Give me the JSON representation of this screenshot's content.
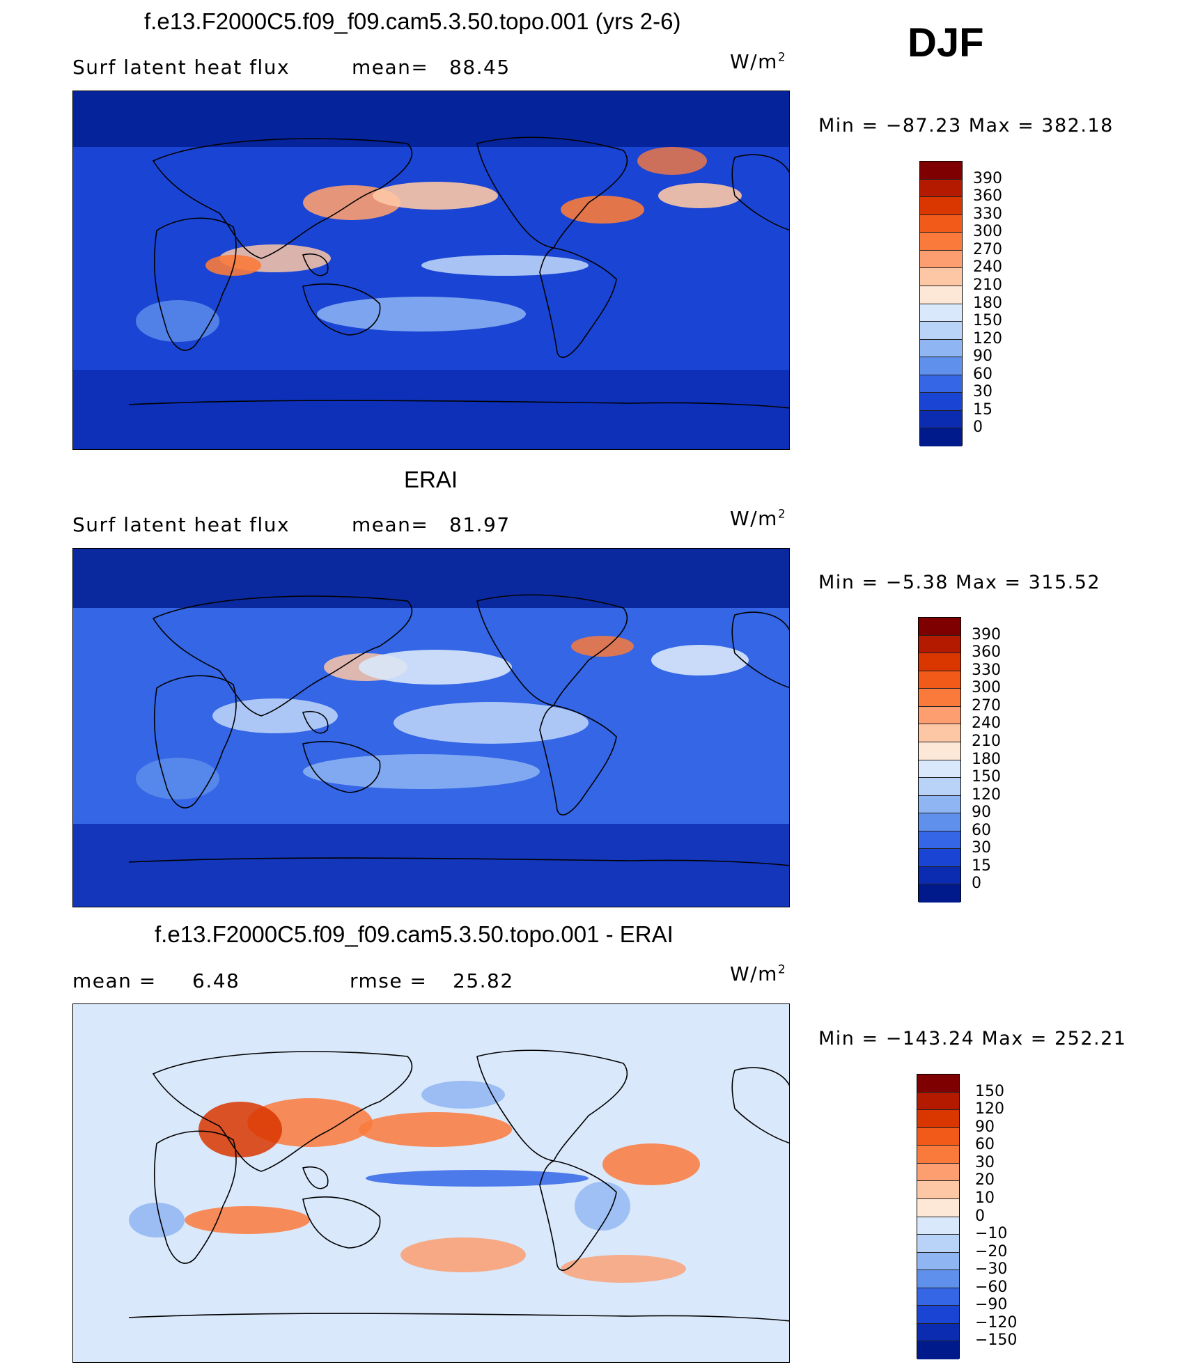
{
  "season": "DJF",
  "panels": [
    {
      "title": "f.e13.F2000C5.f09_f09.cam5.3.50.topo.001 (yrs 2-6)",
      "variable": "Surf latent heat flux",
      "stat_left": "mean=",
      "stat_left_value": "88.45",
      "stat_right": "",
      "stat_right_value": "",
      "units_base": "W/m",
      "units_exp": "2",
      "minmax_text": "Min = −87.23 Max = 382.18",
      "min": -87.23,
      "max": 382.18,
      "colorbar_labels": [
        "390",
        "360",
        "330",
        "300",
        "270",
        "240",
        "210",
        "180",
        "150",
        "120",
        "90",
        "60",
        "30",
        "15",
        "0"
      ],
      "colorbar_colors": [
        "#7f0000",
        "#b31a00",
        "#d93600",
        "#f25a1a",
        "#fa7a3c",
        "#fc9e70",
        "#fdc7a6",
        "#fde8d8",
        "#d9e8fa",
        "#b9d2f7",
        "#8fb5f2",
        "#5f90eb",
        "#3466e6",
        "#1a45d4",
        "#0b2bb0",
        "#001a8c"
      ],
      "stage": "model"
    },
    {
      "title": "ERAI",
      "variable": "Surf latent heat flux",
      "stat_left": "mean=",
      "stat_left_value": "81.97",
      "stat_right": "",
      "stat_right_value": "",
      "units_base": "W/m",
      "units_exp": "2",
      "minmax_text": "Min =  −5.38 Max = 315.52",
      "min": -5.38,
      "max": 315.52,
      "colorbar_labels": [
        "390",
        "360",
        "330",
        "300",
        "270",
        "240",
        "210",
        "180",
        "150",
        "120",
        "90",
        "60",
        "30",
        "15",
        "0"
      ],
      "colorbar_colors": [
        "#7f0000",
        "#b31a00",
        "#d93600",
        "#f25a1a",
        "#fa7a3c",
        "#fc9e70",
        "#fdc7a6",
        "#fde8d8",
        "#d9e8fa",
        "#b9d2f7",
        "#8fb5f2",
        "#5f90eb",
        "#3466e6",
        "#1a45d4",
        "#0b2bb0",
        "#001a8c"
      ],
      "stage": "obs"
    },
    {
      "title": "f.e13.F2000C5.f09_f09.cam5.3.50.topo.001 - ERAI",
      "variable": "",
      "stat_left": "mean =",
      "stat_left_value": "6.48",
      "stat_right": "rmse =",
      "stat_right_value": "25.82",
      "units_base": "W/m",
      "units_exp": "2",
      "minmax_text": "Min = −143.24 Max = 252.21",
      "min": -143.24,
      "max": 252.21,
      "colorbar_labels": [
        "150",
        "120",
        "90",
        "60",
        "30",
        "20",
        "10",
        "0",
        "−10",
        "−20",
        "−30",
        "−60",
        "−90",
        "−120",
        "−150"
      ],
      "colorbar_colors": [
        "#7f0000",
        "#b31a00",
        "#d93600",
        "#f25a1a",
        "#fa7a3c",
        "#fc9e70",
        "#fdc7a6",
        "#fde8d8",
        "#d9e8fa",
        "#b9d2f7",
        "#8fb5f2",
        "#5f90eb",
        "#3466e6",
        "#1a45d4",
        "#0b2bb0",
        "#001a8c"
      ],
      "stage": "diff"
    }
  ]
}
